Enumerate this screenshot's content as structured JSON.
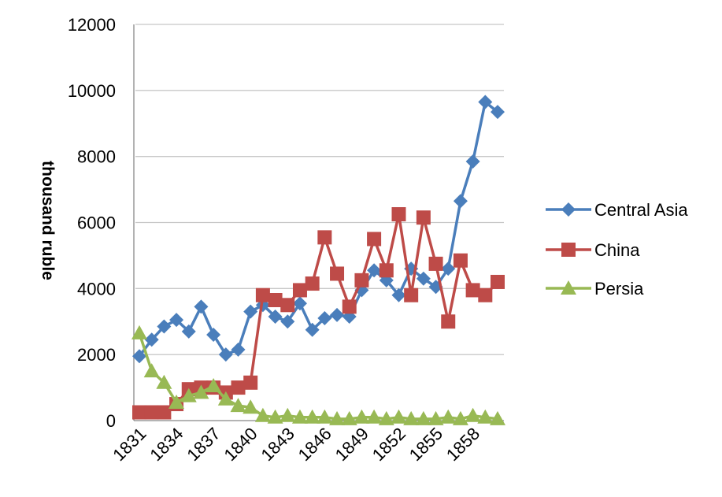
{
  "chart_data": {
    "type": "line",
    "title": "",
    "xlabel": "",
    "ylabel": "thousand ruble",
    "ylim": [
      0,
      12000
    ],
    "yticks": [
      0,
      2000,
      4000,
      6000,
      8000,
      10000,
      12000
    ],
    "x": [
      1831,
      1832,
      1833,
      1834,
      1835,
      1836,
      1837,
      1838,
      1839,
      1840,
      1841,
      1842,
      1843,
      1844,
      1845,
      1846,
      1847,
      1848,
      1849,
      1850,
      1851,
      1852,
      1853,
      1854,
      1855,
      1856,
      1857,
      1858,
      1859,
      1860
    ],
    "x_tick_labels": [
      "1831",
      "1834",
      "1837",
      "1840",
      "1843",
      "1846",
      "1849",
      "1852",
      "1855",
      "1858"
    ],
    "grid": "horizontal",
    "legend_position": "right",
    "series": [
      {
        "name": "Central Asia",
        "color": "#4A7EBB",
        "marker": "diamond",
        "values": [
          1950,
          2450,
          2850,
          3050,
          2700,
          3450,
          2600,
          2000,
          2150,
          3300,
          3500,
          3150,
          3000,
          3550,
          2750,
          3100,
          3200,
          3150,
          3950,
          4550,
          4250,
          3800,
          4600,
          4300,
          4050,
          4600,
          6650,
          7850,
          9650,
          9350
        ]
      },
      {
        "name": "China",
        "color": "#BE4B48",
        "marker": "square",
        "values": [
          250,
          250,
          250,
          500,
          950,
          1000,
          1000,
          850,
          1000,
          1150,
          3800,
          3650,
          3500,
          3950,
          4150,
          5550,
          4450,
          3450,
          4250,
          5500,
          4550,
          6250,
          3800,
          6150,
          4750,
          3000,
          4850,
          3950,
          3800,
          4200
        ]
      },
      {
        "name": "Persia",
        "color": "#98B954",
        "marker": "triangle",
        "values": [
          2650,
          1500,
          1150,
          550,
          750,
          850,
          1050,
          650,
          450,
          400,
          150,
          100,
          150,
          100,
          100,
          100,
          50,
          50,
          100,
          100,
          50,
          100,
          50,
          50,
          50,
          100,
          50,
          150,
          100,
          50
        ]
      }
    ]
  }
}
